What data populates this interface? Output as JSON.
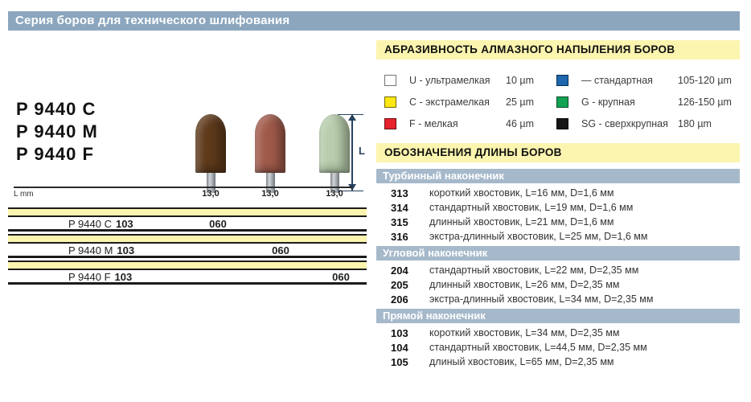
{
  "header": {
    "title": "Серия боров для технического шлифования"
  },
  "colors": {
    "title_bar_bg": "#8CA6BE",
    "section_bar_bg": "#A6B9CB",
    "yellow_header_bg": "#FBF5AF",
    "table_band_bg": "#FBF5AF"
  },
  "product": {
    "models": [
      "P 9440 C",
      "P 9440 M",
      "P 9440 F"
    ],
    "l_mm_label": "L mm",
    "dim_label": "L",
    "burs": [
      {
        "length_mm": "13,0",
        "body_color": "#5E3A1B"
      },
      {
        "length_mm": "13,0",
        "body_color": "#A05A4A"
      },
      {
        "length_mm": "13,0",
        "body_color": "#B7CDAC"
      }
    ],
    "table_rows": [
      {
        "model": "P 9440 C",
        "shank_code": "103",
        "size": "060"
      },
      {
        "model": "P 9440 M",
        "shank_code": "103",
        "size": "060"
      },
      {
        "model": "P 9440 F",
        "shank_code": "103",
        "size": "060"
      }
    ]
  },
  "abrasiveness": {
    "title": "АБРАЗИВНОСТЬ АЛМАЗНОГО НАПЫЛЕНИЯ БОРОВ",
    "items": [
      {
        "label": "U - ультрамелкая",
        "size": "10 µm",
        "swatch": "#FFFFFF"
      },
      {
        "label": "C - экстрамелкая",
        "size": "25 µm",
        "swatch": "#FFE812"
      },
      {
        "label": "F - мелкая",
        "size": "46 µm",
        "swatch": "#E8212E"
      },
      {
        "label": "— стандартная",
        "size": "105-120 µm",
        "swatch": "#1C67AE"
      },
      {
        "label": "G - крупная",
        "size": "126-150 µm",
        "swatch": "#11A353"
      },
      {
        "label": "SG - сверхкрупная",
        "size": "180 µm",
        "swatch": "#161616"
      }
    ]
  },
  "lengths": {
    "title": "ОБОЗНАЧЕНИЯ ДЛИНЫ БОРОВ",
    "sections": [
      {
        "name": "Турбинный наконечник",
        "rows": [
          {
            "code": "313",
            "desc": "короткий хвостовик, L=16 мм, D=1,6 мм"
          },
          {
            "code": "314",
            "desc": "стандартный хвостовик, L=19 мм, D=1,6 мм"
          },
          {
            "code": "315",
            "desc": "длинный хвостовик, L=21 мм, D=1,6 мм"
          },
          {
            "code": "316",
            "desc": "экстра-длинный хвостовик, L=25 мм, D=1,6 мм"
          }
        ]
      },
      {
        "name": "Угловой наконечник",
        "rows": [
          {
            "code": "204",
            "desc": "стандартный хвостовик, L=22 мм, D=2,35 мм"
          },
          {
            "code": "205",
            "desc": "длинный хвостовик, L=26 мм, D=2,35 мм"
          },
          {
            "code": "206",
            "desc": "экстра-длинный хвостовик, L=34 мм, D=2,35 мм"
          }
        ]
      },
      {
        "name": "Прямой наконечник",
        "rows": [
          {
            "code": "103",
            "desc": "короткий хвостовик, L=34 мм, D=2,35 мм"
          },
          {
            "code": "104",
            "desc": "стандартный хвостовик, L=44,5 мм, D=2,35 мм"
          },
          {
            "code": "105",
            "desc": "длиный хвостовик, L=65 мм, D=2,35 мм"
          }
        ]
      }
    ]
  }
}
